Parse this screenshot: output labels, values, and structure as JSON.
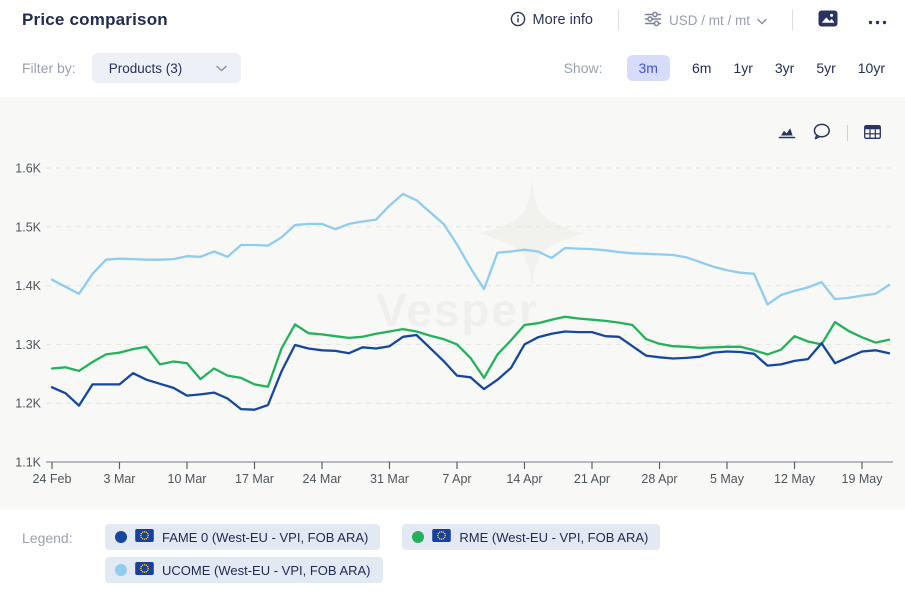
{
  "header": {
    "title": "Price comparison",
    "more_info": "More info",
    "unit_selector": "USD / mt / mt"
  },
  "filter_bar": {
    "filter_by_label": "Filter by:",
    "products_dropdown": "Products (3)",
    "show_label": "Show:",
    "ranges": [
      "3m",
      "6m",
      "1yr",
      "3yr",
      "5yr",
      "10yr"
    ],
    "selected_range": "3m"
  },
  "watermark": "Vesper",
  "legend": {
    "label": "Legend:"
  },
  "colors": {
    "accent_indigo": "#4350e2",
    "chip_bg": "#d8dcfb",
    "navy_text": "#222b54",
    "muted_text": "#9aa1ae",
    "panel_bg": "#f8f9f6",
    "legend_pill_bg": "#e3e9f2",
    "eu_flag_blue": "#17409f",
    "eu_flag_stars": "#ffcc00"
  },
  "chart_data": {
    "type": "line",
    "title": "Price comparison",
    "ylim": [
      1100,
      1600
    ],
    "grid": true,
    "legend_position": "bottom",
    "y_ticks": [
      {
        "label": "1.6K",
        "value": 1600
      },
      {
        "label": "1.5K",
        "value": 1500
      },
      {
        "label": "1.4K",
        "value": 1400
      },
      {
        "label": "1.3K",
        "value": 1300
      },
      {
        "label": "1.2K",
        "value": 1200
      },
      {
        "label": "1.1K",
        "value": 1100
      }
    ],
    "x_ticks": [
      "24 Feb",
      "3 Mar",
      "10 Mar",
      "17 Mar",
      "24 Mar",
      "31 Mar",
      "7 Apr",
      "14 Apr",
      "21 Apr",
      "28 Apr",
      "5 May",
      "12 May",
      "19 May"
    ],
    "dates": [
      "24 Feb",
      "25 Feb",
      "26 Feb",
      "27 Feb",
      "28 Feb",
      "3 Mar",
      "4 Mar",
      "5 Mar",
      "6 Mar",
      "7 Mar",
      "10 Mar",
      "11 Mar",
      "12 Mar",
      "13 Mar",
      "14 Mar",
      "17 Mar",
      "18 Mar",
      "19 Mar",
      "20 Mar",
      "21 Mar",
      "24 Mar",
      "25 Mar",
      "26 Mar",
      "27 Mar",
      "28 Mar",
      "31 Mar",
      "1 Apr",
      "2 Apr",
      "3 Apr",
      "4 Apr",
      "7 Apr",
      "8 Apr",
      "9 Apr",
      "10 Apr",
      "11 Apr",
      "14 Apr",
      "15 Apr",
      "16 Apr",
      "17 Apr",
      "18 Apr",
      "21 Apr",
      "22 Apr",
      "23 Apr",
      "24 Apr",
      "25 Apr",
      "28 Apr",
      "29 Apr",
      "30 Apr",
      "1 May",
      "2 May",
      "5 May",
      "6 May",
      "7 May",
      "8 May",
      "9 May",
      "12 May",
      "13 May",
      "14 May",
      "15 May",
      "16 May",
      "19 May",
      "20 May",
      "21 May"
    ],
    "series": [
      {
        "name": "FAME 0 (West-EU - VPI, FOB ARA)",
        "color": "#16479f",
        "values": [
          1227,
          1217,
          1196,
          1232,
          1232,
          1232,
          1251,
          1240,
          1233,
          1226,
          1213,
          1215,
          1218,
          1208,
          1190,
          1189,
          1197,
          1254,
          1299,
          1293,
          1290,
          1289,
          1285,
          1295,
          1293,
          1297,
          1313,
          1316,
          1294,
          1272,
          1247,
          1244,
          1224,
          1240,
          1260,
          1300,
          1312,
          1318,
          1322,
          1321,
          1321,
          1314,
          1313,
          1297,
          1281,
          1278,
          1276,
          1277,
          1279,
          1286,
          1288,
          1287,
          1284,
          1264,
          1266,
          1272,
          1275,
          1302,
          1268,
          1278,
          1288,
          1290,
          1285
        ]
      },
      {
        "name": "RME (West-EU - VPI, FOB ARA)",
        "color": "#23b25b",
        "values": [
          1259,
          1261,
          1255,
          1270,
          1283,
          1286,
          1292,
          1296,
          1266,
          1271,
          1268,
          1241,
          1259,
          1247,
          1243,
          1232,
          1228,
          1293,
          1334,
          1319,
          1317,
          1314,
          1311,
          1313,
          1318,
          1322,
          1326,
          1322,
          1315,
          1309,
          1300,
          1277,
          1243,
          1283,
          1307,
          1333,
          1336,
          1342,
          1347,
          1344,
          1342,
          1340,
          1337,
          1333,
          1309,
          1301,
          1297,
          1296,
          1294,
          1295,
          1296,
          1296,
          1290,
          1283,
          1291,
          1314,
          1305,
          1300,
          1338,
          1323,
          1312,
          1303,
          1308
        ]
      },
      {
        "name": "UCOME (West-EU - VPI, FOB ARA)",
        "color": "#8fccef",
        "values": [
          1410,
          1398,
          1386,
          1420,
          1444,
          1446,
          1445,
          1444,
          1444,
          1445,
          1450,
          1449,
          1458,
          1449,
          1469,
          1469,
          1468,
          1482,
          1503,
          1505,
          1505,
          1496,
          1505,
          1509,
          1512,
          1536,
          1556,
          1545,
          1525,
          1505,
          1470,
          1430,
          1394,
          1456,
          1458,
          1461,
          1458,
          1447,
          1464,
          1463,
          1462,
          1460,
          1457,
          1455,
          1454,
          1453,
          1452,
          1448,
          1440,
          1432,
          1426,
          1422,
          1420,
          1368,
          1384,
          1391,
          1397,
          1406,
          1377,
          1379,
          1383,
          1386,
          1401
        ]
      }
    ]
  }
}
